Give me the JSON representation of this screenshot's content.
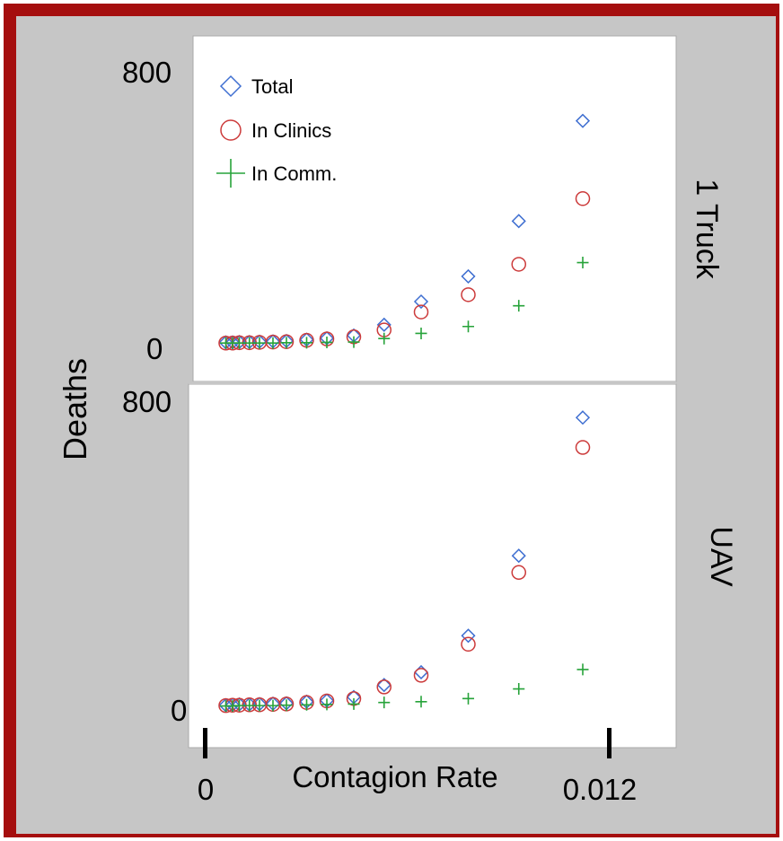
{
  "chart_data": {
    "type": "scatter",
    "xlabel": "Contagion Rate",
    "ylabel": "Deaths",
    "xlim": [
      0,
      0.012
    ],
    "x_tick_labels": [
      "0",
      "0.012"
    ],
    "ylim": [
      0,
      800
    ],
    "y_tick_labels": [
      "0",
      "800"
    ],
    "grid": false,
    "legend": "top-left",
    "legend_entries": [
      "Total",
      "In Clinics",
      "In Comm."
    ],
    "colors": {
      "Total": "#3f6fd1",
      "In Clinics": "#cc3a3a",
      "In Comm.": "#27a33a"
    },
    "x": [
      0.0006,
      0.0008,
      0.001,
      0.0013,
      0.0016,
      0.002,
      0.0024,
      0.003,
      0.0036,
      0.0044,
      0.0053,
      0.0064,
      0.0078,
      0.0093,
      0.0112
    ],
    "panels": [
      {
        "title": "1 Truck",
        "series": [
          {
            "name": "Total",
            "values": [
              4,
              4,
              5,
              5,
              6,
              7,
              8,
              12,
              16,
              24,
              55,
              122,
              195,
              355,
              645
            ]
          },
          {
            "name": "In Clinics",
            "values": [
              2,
              2,
              3,
              3,
              4,
              5,
              6,
              10,
              14,
              20,
              40,
              92,
              142,
              230,
              420
            ]
          },
          {
            "name": "In Comm.",
            "values": [
              2,
              2,
              2,
              2,
              2,
              2,
              3,
              3,
              4,
              5,
              15,
              30,
              50,
              110,
              235
            ]
          }
        ]
      },
      {
        "title": "UAV",
        "series": [
          {
            "name": "Total",
            "values": [
              3,
              4,
              5,
              5,
              6,
              7,
              8,
              12,
              15,
              24,
              55,
              88,
              182,
              388,
              744
            ]
          },
          {
            "name": "In Clinics",
            "values": [
              2,
              3,
              3,
              4,
              4,
              5,
              6,
              10,
              14,
              20,
              50,
              80,
              160,
              345,
              667
            ]
          },
          {
            "name": "In Comm.",
            "values": [
              1,
              1,
              2,
              2,
              2,
              2,
              3,
              4,
              5,
              6,
              10,
              12,
              20,
              45,
              95
            ]
          }
        ]
      }
    ]
  }
}
